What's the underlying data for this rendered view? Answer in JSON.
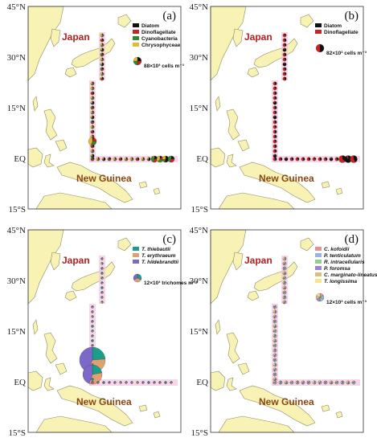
{
  "figure": {
    "lat_labels": [
      "45°N",
      "30°N",
      "15°N",
      "EQ",
      "15°S"
    ],
    "place_japan": "Japan",
    "place_new_guinea": "New Guinea",
    "colors": {
      "ocean": "#ffffff",
      "land": "#f8f3b5",
      "coast": "#8a8a60",
      "japan_text": "#b22222",
      "new_guinea_text": "#8b4513",
      "cruise_track": "#f2c6df"
    }
  },
  "panels": [
    {
      "id": "a",
      "label": "(a)",
      "legend": [
        {
          "name": "Diatom",
          "color": "#111111",
          "italic": false
        },
        {
          "name": "Dinoflagellate",
          "color": "#cc2222",
          "italic": false
        },
        {
          "name": "Cyanobacteria",
          "color": "#2e8b2e",
          "italic": false
        },
        {
          "name": "Chrysophyceae",
          "color": "#e8b830",
          "italic": false
        }
      ],
      "scale_text": "88×10³ cells m⁻³"
    },
    {
      "id": "b",
      "label": "(b)",
      "legend": [
        {
          "name": "Diatom",
          "color": "#111111",
          "italic": false
        },
        {
          "name": "Dinoflagellate",
          "color": "#cc2222",
          "italic": false
        }
      ],
      "scale_text": "82×10³ cells m⁻³"
    },
    {
      "id": "c",
      "label": "(c)",
      "legend": [
        {
          "name": "T. thiebautii",
          "color": "#1a9e8a",
          "italic": true
        },
        {
          "name": "T. erythraeum",
          "color": "#e0a070",
          "italic": true
        },
        {
          "name": "T. hildebrandtii",
          "color": "#7b68c8",
          "italic": true
        }
      ],
      "scale_text": "12×10³ trichomes m⁻³"
    },
    {
      "id": "d",
      "label": "(d)",
      "legend": [
        {
          "name": "C. kofoidii",
          "color": "#e89090",
          "italic": true
        },
        {
          "name": "P. tenticulatum",
          "color": "#9fb0e8",
          "italic": true
        },
        {
          "name": "R. intracellularis",
          "color": "#8fd08f",
          "italic": true
        },
        {
          "name": "P. foromsa",
          "color": "#9a84d8",
          "italic": true
        },
        {
          "name": "C. marginato-lineatus",
          "color": "#d7c27e",
          "italic": true
        },
        {
          "name": "T. longissima",
          "color": "#f4e88c",
          "italic": true
        }
      ],
      "scale_text": "12×10³ cells m⁻³"
    }
  ]
}
